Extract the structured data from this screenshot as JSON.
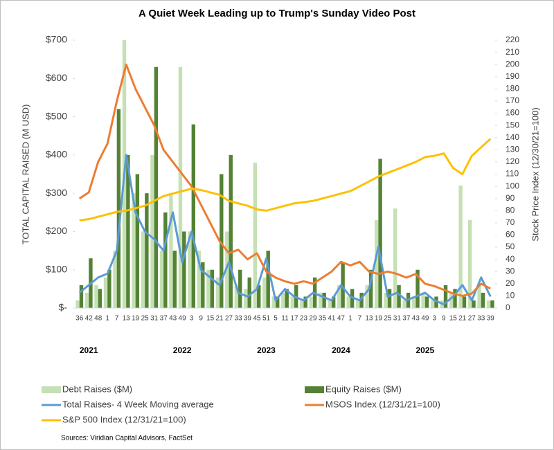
{
  "chart_data": {
    "type": "combo",
    "title": "A Quiet Week Leading up to Trump's Sunday Video Post",
    "y_label": "TOTAL  CAPITAL  RAISED  (M USD)",
    "y2_label": "Stock Price Index (12/30/21=100)",
    "source": "Sources: Viridian Capital Advisors, FactSet",
    "categories": [
      "36",
      "42",
      "48",
      "1",
      "7",
      "13",
      "19",
      "25",
      "31",
      "37",
      "43",
      "49",
      "3",
      "9",
      "15",
      "21",
      "27",
      "33",
      "39",
      "45",
      "51",
      "5",
      "11",
      "17",
      "23",
      "29",
      "35",
      "41",
      "47",
      "1",
      "7",
      "13",
      "19",
      "25",
      "31",
      "37",
      "43",
      "49",
      "3",
      "9",
      "15",
      "21",
      "27",
      "33",
      "39"
    ],
    "years": [
      null,
      "2021",
      null,
      null,
      null,
      null,
      null,
      null,
      null,
      null,
      null,
      "2022",
      null,
      null,
      null,
      null,
      null,
      null,
      null,
      null,
      "2023",
      null,
      null,
      null,
      null,
      null,
      null,
      null,
      "2024",
      null,
      null,
      null,
      null,
      null,
      null,
      null,
      null,
      "2025",
      null,
      null,
      null,
      null,
      null,
      null,
      null
    ],
    "ylim": [
      0,
      700
    ],
    "yticks": [
      {
        "value": 0,
        "label": "$-"
      },
      {
        "value": 100,
        "label": "$100"
      },
      {
        "value": 200,
        "label": "$200"
      },
      {
        "value": 300,
        "label": "$300"
      },
      {
        "value": 400,
        "label": "$400"
      },
      {
        "value": 500,
        "label": "$500"
      },
      {
        "value": 600,
        "label": "$600"
      },
      {
        "value": 700,
        "label": "$700"
      }
    ],
    "y2lim": [
      0,
      220
    ],
    "y2ticks": [
      0,
      10,
      20,
      30,
      40,
      50,
      60,
      70,
      80,
      90,
      100,
      110,
      120,
      130,
      140,
      150,
      160,
      170,
      180,
      190,
      200,
      210,
      220
    ],
    "series": [
      {
        "name": "Debt Raises ($M)",
        "type": "bar",
        "color": "#c5e0b4",
        "values": [
          20,
          40,
          60,
          80,
          150,
          700,
          300,
          200,
          400,
          150,
          300,
          630,
          200,
          150,
          100,
          80,
          200,
          60,
          50,
          380,
          80,
          30,
          40,
          30,
          20,
          30,
          40,
          20,
          60,
          30,
          20,
          60,
          230,
          40,
          260,
          20,
          30,
          40,
          20,
          20,
          40,
          320,
          230,
          60,
          20
        ]
      },
      {
        "name": "Equity Raises ($M)",
        "type": "bar",
        "color": "#548235",
        "values": [
          60,
          130,
          50,
          100,
          520,
          400,
          350,
          300,
          630,
          250,
          150,
          200,
          480,
          120,
          100,
          350,
          400,
          100,
          80,
          60,
          150,
          30,
          50,
          60,
          30,
          80,
          40,
          30,
          120,
          50,
          40,
          100,
          390,
          50,
          60,
          40,
          100,
          30,
          30,
          60,
          50,
          30,
          20,
          40,
          20
        ]
      },
      {
        "name": "Total Raises- 4 Week Moving average",
        "type": "line",
        "color": "#5b9bd5",
        "values": [
          40,
          60,
          80,
          90,
          150,
          400,
          250,
          200,
          180,
          150,
          250,
          120,
          200,
          100,
          80,
          60,
          120,
          40,
          30,
          50,
          130,
          20,
          50,
          30,
          20,
          40,
          30,
          20,
          60,
          30,
          20,
          50,
          160,
          30,
          40,
          20,
          30,
          40,
          20,
          10,
          30,
          60,
          20,
          80,
          30
        ]
      },
      {
        "name": "MSOS Index (12/31/21=100)",
        "type": "line",
        "color": "#ed7d31",
        "axis": "y2",
        "values": [
          90,
          95,
          120,
          135,
          170,
          200,
          180,
          165,
          150,
          130,
          120,
          110,
          100,
          85,
          70,
          55,
          45,
          48,
          40,
          45,
          30,
          25,
          22,
          20,
          22,
          20,
          25,
          30,
          38,
          35,
          38,
          30,
          28,
          30,
          28,
          25,
          28,
          20,
          18,
          15,
          12,
          10,
          12,
          20,
          16
        ]
      },
      {
        "name": "S&P 500 Index (12/31/21=100)",
        "type": "line",
        "color": "#ffc000",
        "axis": "y2",
        "values": [
          72,
          73,
          75,
          77,
          79,
          80,
          82,
          84,
          88,
          92,
          94,
          96,
          98,
          97,
          95,
          93,
          88,
          86,
          84,
          81,
          80,
          82,
          84,
          86,
          87,
          88,
          90,
          92,
          94,
          96,
          100,
          104,
          108,
          111,
          114,
          117,
          120,
          124,
          125,
          127,
          115,
          110,
          125,
          132,
          139
        ]
      }
    ]
  }
}
